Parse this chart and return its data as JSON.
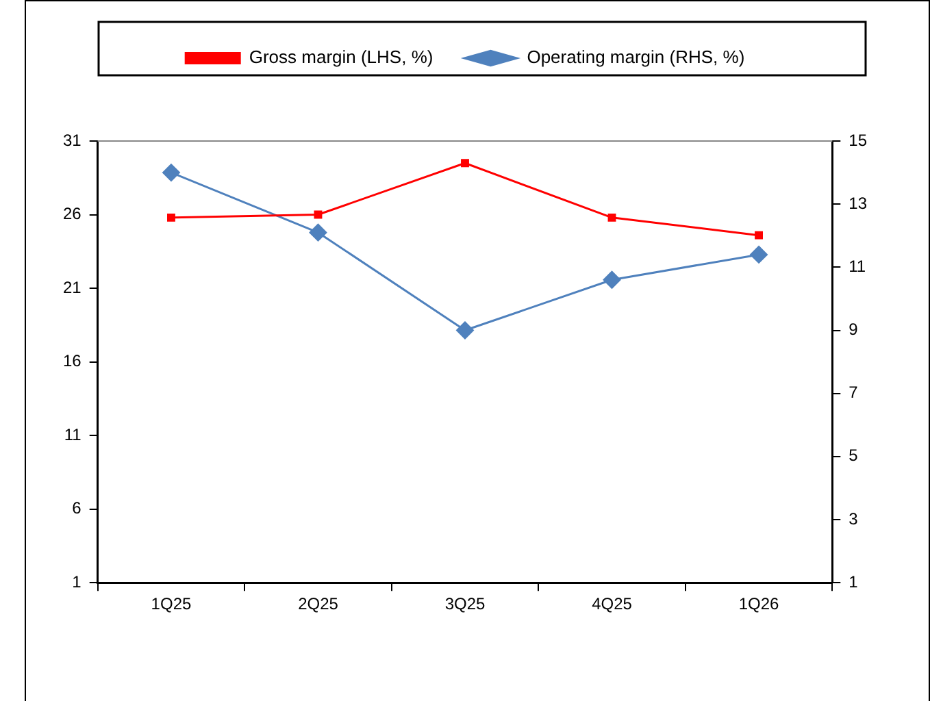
{
  "chart_data": {
    "type": "line",
    "categories": [
      "1Q25",
      "2Q25",
      "3Q25",
      "4Q25",
      "1Q26"
    ],
    "series": [
      {
        "name": "Gross margin (LHS, %)",
        "color": "#ff0000",
        "marker": "square",
        "values": [
          25.8,
          26.0,
          29.5,
          25.8,
          24.6
        ]
      },
      {
        "name": "Operating margin (RHS, %)",
        "color": "#4f81bd",
        "marker": "diamond",
        "axis": "y2",
        "values": [
          14.0,
          12.1,
          9.0,
          10.6,
          11.4
        ]
      }
    ],
    "ylim": [
      1,
      31
    ],
    "yticks": [
      1,
      6,
      11,
      16,
      21,
      26,
      31
    ],
    "y2lim": [
      1,
      15
    ],
    "y2ticks": [
      1,
      3,
      5,
      7,
      9,
      11,
      13,
      15
    ],
    "grid": false,
    "legend": "top",
    "line_style": "solid"
  }
}
